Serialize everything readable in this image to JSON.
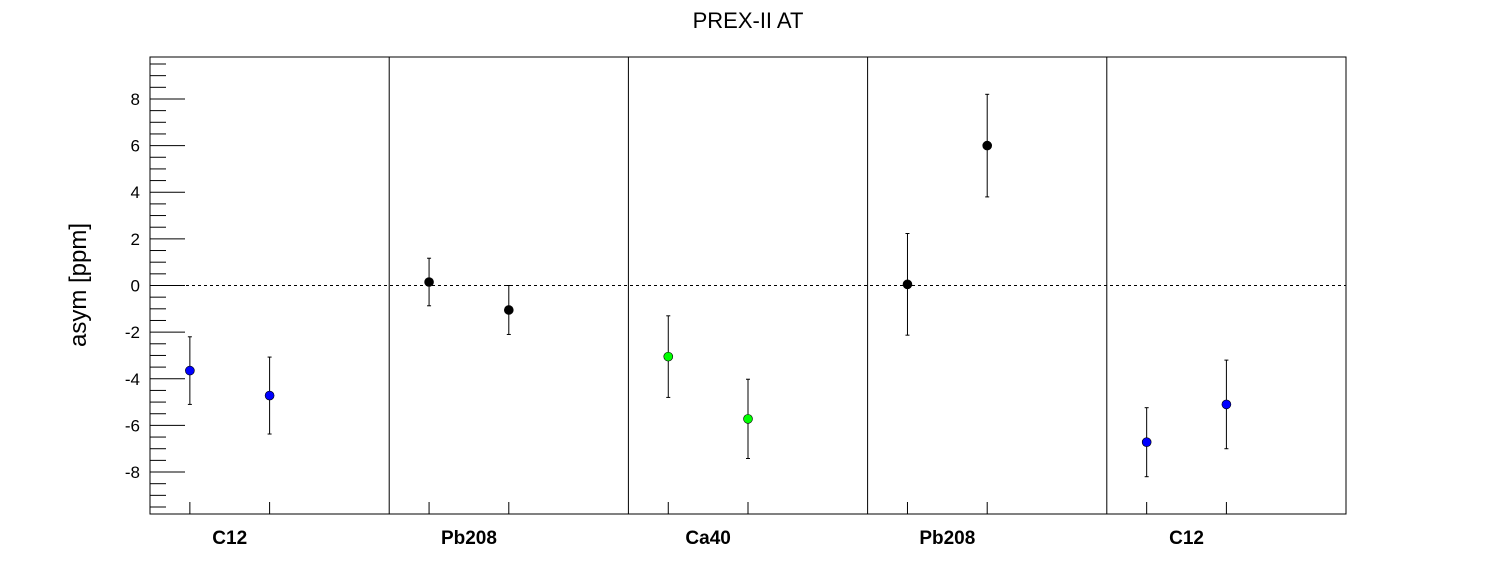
{
  "chart_data": {
    "type": "scatter",
    "title": "PREX-II AT",
    "xlabel": "",
    "ylabel": "asym [ppm]",
    "ylim": [
      -9.8,
      9.8
    ],
    "yticks": [
      -8,
      -6,
      -4,
      -2,
      0,
      2,
      4,
      6,
      8
    ],
    "grid": false,
    "reference_line": {
      "y": 0,
      "style": "dashed"
    },
    "groups": [
      {
        "label": "C12",
        "color": "#0000ff",
        "points": [
          {
            "y": -3.65,
            "err": 1.45
          },
          {
            "y": -4.72,
            "err": 1.65
          }
        ]
      },
      {
        "label": "Pb208",
        "color": "#000000",
        "points": [
          {
            "y": 0.15,
            "err": 1.02
          },
          {
            "y": -1.05,
            "err": 1.05
          }
        ]
      },
      {
        "label": "Ca40",
        "color": "#00ff00",
        "points": [
          {
            "y": -3.05,
            "err": 1.75
          },
          {
            "y": -5.72,
            "err": 1.7
          }
        ]
      },
      {
        "label": "Pb208",
        "color": "#000000",
        "points": [
          {
            "y": 0.05,
            "err": 2.18
          },
          {
            "y": 6.0,
            "err": 2.2
          }
        ]
      },
      {
        "label": "C12",
        "color": "#0000ff",
        "points": [
          {
            "y": -6.72,
            "err": 1.48
          },
          {
            "y": -5.1,
            "err": 1.9
          }
        ]
      }
    ]
  }
}
